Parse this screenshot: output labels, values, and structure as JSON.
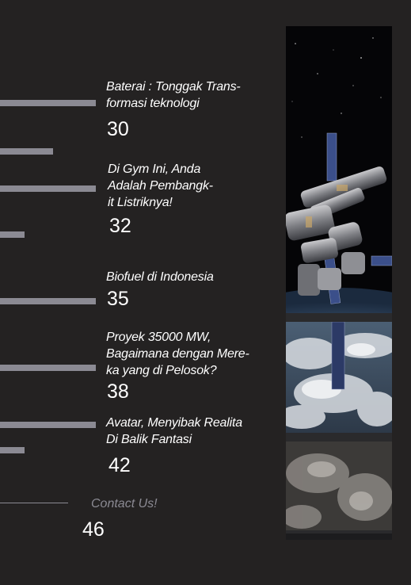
{
  "toc": [
    {
      "title": "Baterai : Tonggak Trans-\nformasi teknologi",
      "page": "30"
    },
    {
      "title": "Di Gym Ini, Anda\nAdalah Pembangk-\nit Listriknya!",
      "page": "32"
    },
    {
      "title": "Biofuel di Indonesia",
      "page": "35"
    },
    {
      "title": "Proyek 35000 MW,\nBagaimana dengan Mere-\nka yang di Pelosok?",
      "page": "38"
    },
    {
      "title": "Avatar, Menyibak Realita\nDi Balik Fantasi",
      "page": "42"
    }
  ],
  "contact": {
    "label": "Contact Us!",
    "page": "46"
  },
  "colors": {
    "background": "#242222",
    "bar": "#8b8a93",
    "text": "#ffffff",
    "muted": "#8b8a93"
  }
}
